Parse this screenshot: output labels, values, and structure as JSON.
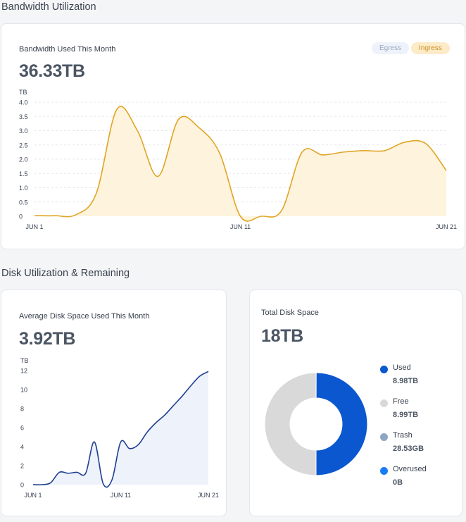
{
  "sections": {
    "bandwidth": "Bandwidth Utilization",
    "disk": "Disk Utilization & Remaining"
  },
  "bandwidth_card": {
    "label": "Bandwidth Used This Month",
    "value": "36.33TB",
    "legend": {
      "egress": "Egress",
      "ingress": "Ingress",
      "egress_color": "#eef3fb",
      "ingress_color": "#fdebc8"
    }
  },
  "disk_avg_card": {
    "label": "Average Disk Space Used This Month",
    "value": "3.92TB"
  },
  "total_disk_card": {
    "label": "Total Disk Space",
    "value": "18TB",
    "legend": [
      {
        "name": "Used",
        "value": "8.98TB",
        "color": "#0b57d0"
      },
      {
        "name": "Free",
        "value": "8.99TB",
        "color": "#d9d9d9"
      },
      {
        "name": "Trash",
        "value": "28.53GB",
        "color": "#8fa6c3"
      },
      {
        "name": "Overused",
        "value": "0B",
        "color": "#1a7cf5"
      }
    ]
  },
  "chart_data": [
    {
      "type": "area",
      "unit_label": "TB",
      "series": [
        {
          "name": "Ingress",
          "color": "#e0a526",
          "fill": "#fef3dc",
          "points": [
            [
              1,
              0.02
            ],
            [
              2,
              0.02
            ],
            [
              3,
              0.05
            ],
            [
              4,
              0.8
            ],
            [
              5,
              3.75
            ],
            [
              6,
              3.0
            ],
            [
              7,
              1.4
            ],
            [
              8,
              3.4
            ],
            [
              9,
              3.1
            ],
            [
              10,
              2.2
            ],
            [
              11,
              0.0
            ],
            [
              12,
              0.0
            ],
            [
              13,
              0.2
            ],
            [
              14,
              2.25
            ],
            [
              15,
              2.15
            ],
            [
              16,
              2.25
            ],
            [
              17,
              2.3
            ],
            [
              18,
              2.3
            ],
            [
              19,
              2.6
            ],
            [
              20,
              2.55
            ],
            [
              21,
              1.6
            ]
          ]
        }
      ],
      "yticks": [
        "0",
        "0.5",
        "1.0",
        "1.5",
        "2.0",
        "2.5",
        "3.0",
        "3.5",
        "4.0"
      ],
      "xlabels": [
        {
          "x": 1,
          "label": "JUN 1"
        },
        {
          "x": 11,
          "label": "JUN 11"
        },
        {
          "x": 21,
          "label": "JUN 21"
        }
      ],
      "xlim": [
        1,
        21
      ],
      "ylim": [
        0,
        4
      ],
      "grid": true
    },
    {
      "type": "area",
      "unit_label": "TB",
      "series": [
        {
          "name": "Disk Used",
          "color": "#1f3f91",
          "fill": "#eef2fb",
          "points": [
            [
              1,
              0.0
            ],
            [
              2,
              0.0
            ],
            [
              3,
              0.2
            ],
            [
              4,
              1.3
            ],
            [
              5,
              1.2
            ],
            [
              6,
              1.3
            ],
            [
              7,
              1.2
            ],
            [
              8,
              4.5
            ],
            [
              9,
              0.1
            ],
            [
              10,
              0.5
            ],
            [
              11,
              4.5
            ],
            [
              12,
              3.8
            ],
            [
              13,
              4.2
            ],
            [
              14,
              5.5
            ],
            [
              15,
              6.5
            ],
            [
              16,
              7.3
            ],
            [
              17,
              8.3
            ],
            [
              18,
              9.3
            ],
            [
              19,
              10.4
            ],
            [
              20,
              11.4
            ],
            [
              21,
              11.9
            ]
          ]
        }
      ],
      "yticks": [
        "0",
        "2",
        "4",
        "6",
        "8",
        "10",
        "12"
      ],
      "xlabels": [
        {
          "x": 1,
          "label": "JUN 1"
        },
        {
          "x": 11,
          "label": "JUN 11"
        },
        {
          "x": 21,
          "label": "JUN 21"
        }
      ],
      "xlim": [
        1,
        21
      ],
      "ylim": [
        0,
        12
      ],
      "grid": false
    },
    {
      "type": "pie",
      "slices": [
        {
          "name": "Used",
          "value": 8.98,
          "color": "#0b57d0"
        },
        {
          "name": "Free",
          "value": 8.99,
          "color": "#d9d9d9"
        }
      ]
    }
  ]
}
